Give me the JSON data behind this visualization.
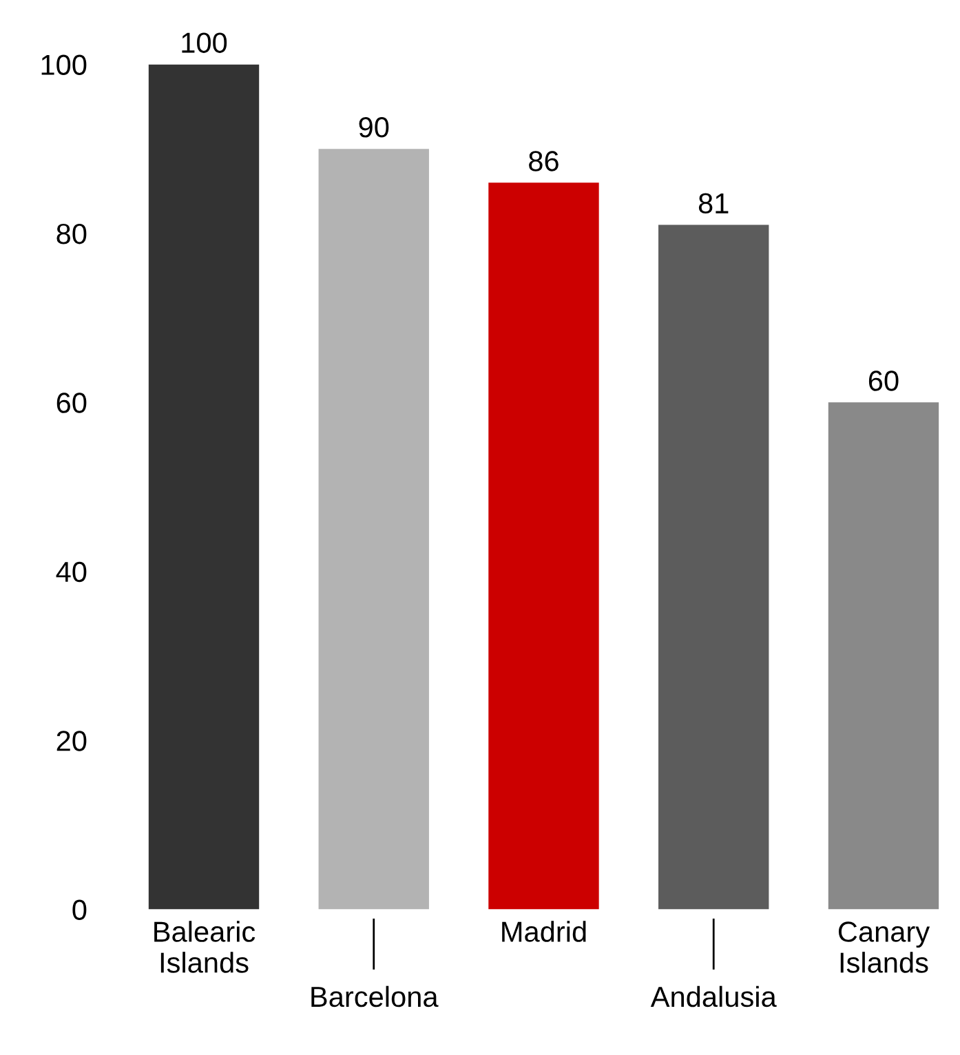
{
  "chart_data": {
    "type": "bar",
    "categories": [
      "Balearic\nIslands",
      "Barcelona",
      "Madrid",
      "Andalusia",
      "Canary\nIslands"
    ],
    "values": [
      100,
      90,
      86,
      81,
      60
    ],
    "colors": [
      "#333333",
      "#b3b3b3",
      "#cc0000",
      "#5c5c5c",
      "#898989"
    ],
    "ylim": [
      0,
      100
    ],
    "yticks": [
      0,
      20,
      40,
      60,
      80,
      100
    ],
    "data_labels": true,
    "grid": false,
    "legend": false
  }
}
